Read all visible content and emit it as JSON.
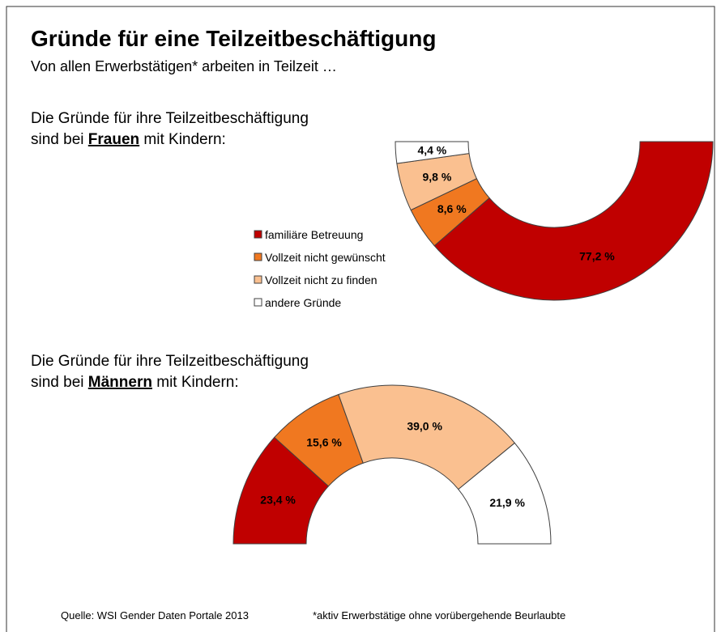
{
  "title": "Gründe für eine Teilzeitbeschäftigung",
  "subtitle": "Von allen Erwerbstätigen* arbeiten in Teilzeit …",
  "source": "Quelle: WSI Gender Daten Portale 2013",
  "footnote": "*aktiv Erwerbstätige ohne vorübergehende Beurlaubte",
  "chart_data": [
    {
      "type": "donut",
      "heading": {
        "line1": "Die Gründe für ihre Teilzeitbeschäftigung",
        "prefix": "sind bei",
        "emphasis": "Frauen",
        "suffix": "mit Kindern:"
      },
      "categories": [
        "familiäre Betreuung",
        "Vollzeit nicht gewünscht",
        "Vollzeit nicht zu finden",
        "andere Gründe"
      ],
      "colors": [
        "#c00000",
        "#f07820",
        "#fac090",
        "#ffffff"
      ],
      "values": [
        77.2,
        8.6,
        9.8,
        4.4
      ],
      "value_labels": [
        "77,2 %",
        "8,6 %",
        "9,8 %",
        "4,4 %"
      ],
      "legend": true
    },
    {
      "type": "donut",
      "heading": {
        "line1": "Die Gründe für ihre Teilzeitbeschäftigung",
        "prefix": "sind bei",
        "emphasis": "Männern",
        "suffix": "mit Kindern:"
      },
      "colors": [
        "#c00000",
        "#f07820",
        "#fac090",
        "#ffffff"
      ],
      "values": [
        23.4,
        15.6,
        39.0,
        21.9
      ],
      "value_labels": [
        "23,4 %",
        "15,6 %",
        "39,0 %",
        "21,9 %"
      ],
      "legend": false
    }
  ]
}
